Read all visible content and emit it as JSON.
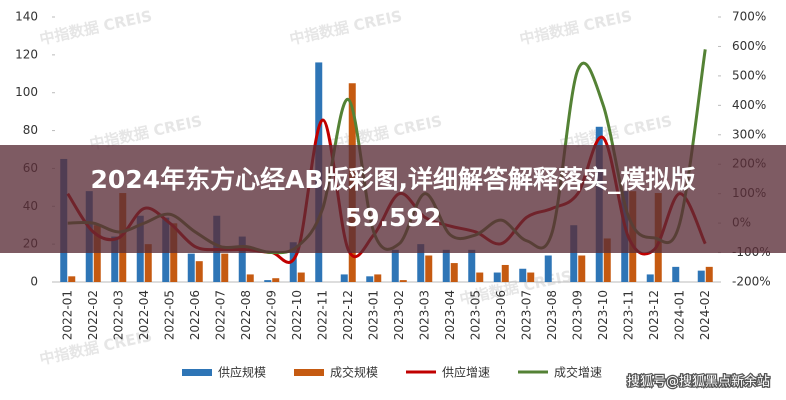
{
  "chart_data": {
    "type": "bar-line",
    "overlay_title": "2024年东方心经AB版彩图,详细解答解释落实_模拟版59.592",
    "watermark": "中指数据 CREIS",
    "source_mark": "搜狐号@搜狐黑点新余站",
    "categories": [
      "2022-01",
      "2022-02",
      "2022-03",
      "2022-04",
      "2022-05",
      "2022-06",
      "2022-07",
      "2022-08",
      "2022-09",
      "2022-10",
      "2022-11",
      "2022-12",
      "2023-01",
      "2023-02",
      "2023-03",
      "2023-04",
      "2023-05",
      "2023-06",
      "2023-07",
      "2023-08",
      "2023-09",
      "2023-10",
      "2023-11",
      "2023-12",
      "2024-01",
      "2024-02"
    ],
    "series": [
      {
        "name": "供应规模",
        "color": "#2e75b6",
        "kind": "bar",
        "values": [
          65,
          48,
          24,
          35,
          34,
          15,
          35,
          24,
          1,
          21,
          116,
          4,
          3,
          17,
          20,
          17,
          17,
          5,
          7,
          14,
          30,
          82,
          48,
          4,
          8,
          6
        ]
      },
      {
        "name": "成交规模",
        "color": "#c55a11",
        "kind": "bar",
        "values": [
          3,
          30,
          47,
          20,
          31,
          11,
          15,
          4,
          2,
          5,
          0,
          105,
          4,
          1,
          14,
          10,
          5,
          9,
          5,
          0,
          14,
          23,
          48,
          47,
          0,
          8
        ]
      },
      {
        "name": "供应增速",
        "color": "#c00000",
        "kind": "line",
        "axis": "y2",
        "values": [
          100,
          -30,
          -50,
          50,
          0,
          -80,
          -90,
          -90,
          -100,
          -100,
          350,
          -90,
          -40,
          100,
          20,
          -10,
          -30,
          -70,
          20,
          50,
          100,
          290,
          -50,
          -90,
          100,
          -70
        ]
      },
      {
        "name": "成交增速",
        "color": "#548235",
        "kind": "line",
        "axis": "y2",
        "values": [
          0,
          0,
          -30,
          0,
          30,
          -30,
          -80,
          -80,
          -100,
          -80,
          50,
          420,
          -30,
          -70,
          100,
          -40,
          -40,
          10,
          -60,
          -30,
          520,
          400,
          20,
          -50,
          0,
          590
        ]
      }
    ],
    "ylim": [
      0,
      140
    ],
    "yticks": [
      0,
      20,
      40,
      60,
      80,
      100,
      120,
      140
    ],
    "y2lim": [
      -200,
      700
    ],
    "y2ticks": [
      {
        "value": -200,
        "label": "-200%"
      },
      {
        "value": -100,
        "label": "-100%"
      },
      {
        "value": 0,
        "label": "0%"
      },
      {
        "value": 100,
        "label": "100%"
      },
      {
        "value": 200,
        "label": "200%"
      },
      {
        "value": 300,
        "label": "300%"
      },
      {
        "value": 400,
        "label": "400%"
      },
      {
        "value": 500,
        "label": "500%"
      },
      {
        "value": 600,
        "label": "600%"
      },
      {
        "value": 700,
        "label": "700%"
      }
    ],
    "grid": false
  }
}
